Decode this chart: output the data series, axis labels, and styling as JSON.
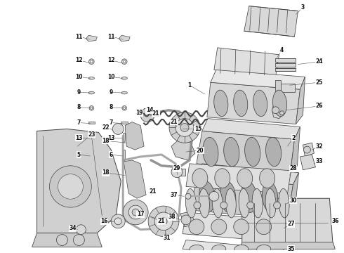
{
  "background_color": "#ffffff",
  "fig_width": 4.9,
  "fig_height": 3.6,
  "dpi": 100,
  "lc": "#444444",
  "fs": 5.5,
  "fc_part": "#e8e8e8",
  "fc_dark": "#c8c8c8",
  "lw_part": 0.55
}
